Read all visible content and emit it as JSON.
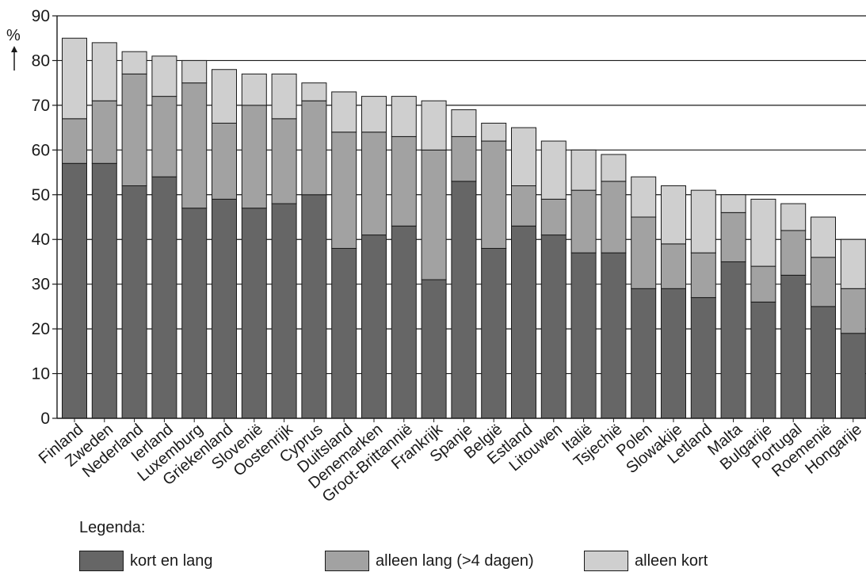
{
  "chart_data": {
    "type": "bar",
    "stacked": true,
    "ylabel": "%",
    "ylim": [
      0,
      90
    ],
    "yticks": [
      0,
      10,
      20,
      30,
      40,
      50,
      60,
      70,
      80,
      90
    ],
    "grid": true,
    "categories": [
      "Finland",
      "Zweden",
      "Nederland",
      "Ierland",
      "Luxemburg",
      "Griekenland",
      "Slovenië",
      "Oostenrijk",
      "Cyprus",
      "Duitsland",
      "Denemarken",
      "Groot-Brittannië",
      "Frankrijk",
      "Spanje",
      "België",
      "Estland",
      "Litouwen",
      "Italië",
      "Tsjechië",
      "Polen",
      "Slowakije",
      "Letland",
      "Malta",
      "Bulgarije",
      "Portugal",
      "Roemenië",
      "Hongarije"
    ],
    "series": [
      {
        "name": "kort en lang",
        "color": "#666666",
        "values": [
          57,
          57,
          52,
          54,
          47,
          49,
          47,
          48,
          50,
          38,
          41,
          43,
          31,
          53,
          38,
          43,
          41,
          37,
          37,
          29,
          29,
          27,
          35,
          26,
          32,
          25,
          19
        ]
      },
      {
        "name": "alleen lang (>4 dagen)",
        "color": "#a2a2a2",
        "values": [
          10,
          14,
          25,
          18,
          28,
          17,
          23,
          19,
          21,
          26,
          23,
          20,
          29,
          10,
          24,
          9,
          8,
          14,
          16,
          16,
          10,
          10,
          11,
          8,
          10,
          11,
          10
        ]
      },
      {
        "name": "alleen kort",
        "color": "#cfcfcf",
        "values": [
          18,
          13,
          5,
          9,
          5,
          12,
          7,
          10,
          4,
          9,
          8,
          9,
          11,
          6,
          4,
          13,
          13,
          9,
          6,
          9,
          13,
          14,
          4,
          15,
          6,
          9,
          11
        ]
      }
    ]
  },
  "legend": {
    "title": "Legenda:",
    "placement": "bottom"
  }
}
